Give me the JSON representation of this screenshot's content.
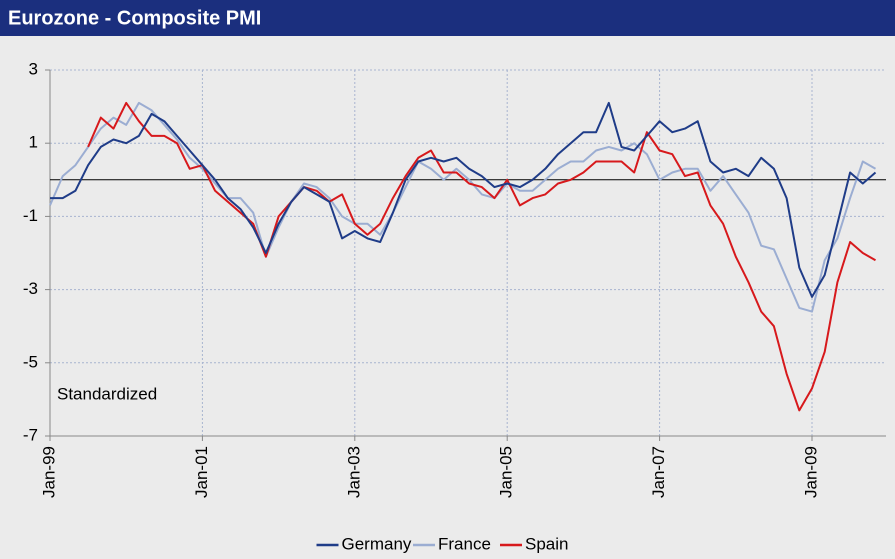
{
  "chart_data": {
    "type": "line",
    "title": "Eurozone - Composite PMI",
    "annotation": "Standardized",
    "categories": [
      "Jan-99",
      null,
      null,
      null,
      null,
      null,
      null,
      null,
      null,
      null,
      null,
      null,
      "Jan-01",
      null,
      null,
      null,
      null,
      null,
      null,
      null,
      null,
      null,
      null,
      null,
      "Jan-03",
      null,
      null,
      null,
      null,
      null,
      null,
      null,
      null,
      null,
      null,
      null,
      "Jan-05",
      null,
      null,
      null,
      null,
      null,
      null,
      null,
      null,
      null,
      null,
      null,
      "Jan-07",
      null,
      null,
      null,
      null,
      null,
      null,
      null,
      null,
      null,
      null,
      null,
      "Jan-09",
      null,
      null,
      null,
      null,
      null
    ],
    "series": [
      {
        "name": "Germany",
        "color": "#1f3c88",
        "values": [
          -0.5,
          -0.5,
          -0.3,
          0.4,
          0.9,
          1.1,
          1.0,
          1.2,
          1.8,
          1.6,
          1.2,
          0.8,
          0.4,
          0.0,
          -0.5,
          -0.8,
          -1.3,
          -2.0,
          -1.2,
          -0.6,
          -0.2,
          -0.4,
          -0.6,
          -1.6,
          -1.4,
          -1.6,
          -1.7,
          -0.9,
          0.0,
          0.5,
          0.6,
          0.5,
          0.6,
          0.3,
          0.1,
          -0.2,
          -0.1,
          -0.2,
          0.0,
          0.3,
          0.7,
          1.0,
          1.3,
          1.3,
          2.1,
          0.9,
          0.8,
          1.2,
          1.6,
          1.3,
          1.4,
          1.6,
          0.5,
          0.2,
          0.3,
          0.1,
          0.6,
          0.3,
          -0.5,
          -2.4,
          -3.2,
          -2.6,
          -1.2,
          0.2,
          -0.1,
          0.2
        ]
      },
      {
        "name": "France",
        "color": "#9badd2",
        "values": [
          -0.7,
          0.1,
          0.4,
          0.9,
          1.4,
          1.7,
          1.5,
          2.1,
          1.9,
          1.5,
          1.1,
          0.6,
          0.3,
          -0.1,
          -0.5,
          -0.5,
          -0.9,
          -2.1,
          -1.3,
          -0.6,
          -0.1,
          -0.2,
          -0.5,
          -1.0,
          -1.2,
          -1.2,
          -1.5,
          -0.9,
          -0.2,
          0.5,
          0.3,
          0.0,
          0.3,
          0.0,
          -0.4,
          -0.5,
          -0.1,
          -0.3,
          -0.3,
          0.0,
          0.3,
          0.5,
          0.5,
          0.8,
          0.9,
          0.8,
          1.0,
          0.7,
          0.0,
          0.2,
          0.3,
          0.3,
          -0.3,
          0.1,
          -0.4,
          -0.9,
          -1.8,
          -1.9,
          -2.7,
          -3.5,
          -3.6,
          -2.2,
          -1.6,
          -0.5,
          0.5,
          0.3
        ]
      },
      {
        "name": "Spain",
        "color": "#d7191c",
        "values": [
          null,
          null,
          null,
          0.9,
          1.7,
          1.4,
          2.1,
          1.6,
          1.2,
          1.2,
          1.0,
          0.3,
          0.4,
          -0.3,
          -0.6,
          -0.9,
          -1.2,
          -2.1,
          -1.0,
          -0.6,
          -0.2,
          -0.3,
          -0.6,
          -0.4,
          -1.2,
          -1.5,
          -1.2,
          -0.5,
          0.1,
          0.6,
          0.8,
          0.2,
          0.2,
          -0.1,
          -0.2,
          -0.5,
          0.0,
          -0.7,
          -0.5,
          -0.4,
          -0.1,
          0.0,
          0.2,
          0.5,
          0.5,
          0.5,
          0.2,
          1.3,
          0.8,
          0.7,
          0.1,
          0.2,
          -0.7,
          -1.2,
          -2.1,
          -2.8,
          -3.6,
          -4.0,
          -5.3,
          -6.3,
          -5.7,
          -4.7,
          -2.8,
          -1.7,
          -2.0,
          -2.2
        ]
      }
    ],
    "ylim": [
      -7,
      3
    ],
    "yticks": [
      -7,
      -5,
      -3,
      -1,
      1,
      3
    ],
    "grid": true,
    "legend": "bottom"
  }
}
